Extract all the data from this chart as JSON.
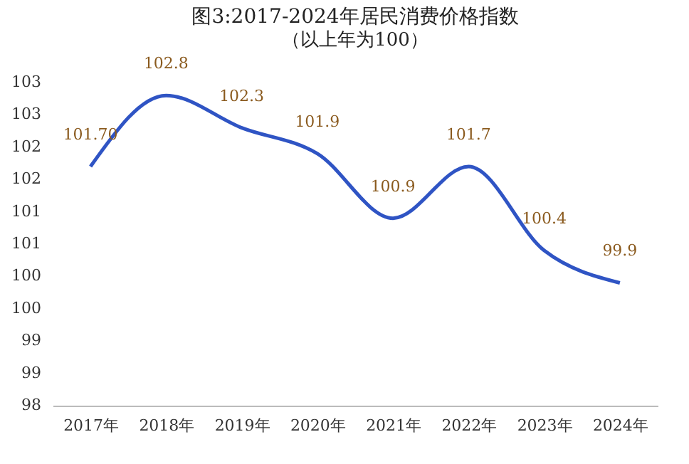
{
  "chart_data": {
    "type": "line",
    "title": "图3:2017-2024年居民消费价格指数",
    "subtitle": "（以上年为100）",
    "categories": [
      "2017年",
      "2018年",
      "2019年",
      "2020年",
      "2021年",
      "2022年",
      "2023年",
      "2024年"
    ],
    "series": [
      {
        "color": "#2f54c4",
        "values": [
          101.7,
          102.8,
          102.3,
          101.9,
          100.9,
          101.7,
          100.4,
          99.9
        ],
        "value_labels": [
          "101.70",
          "102.8",
          "102.3",
          "101.9",
          "100.9",
          "101.7",
          "100.4",
          "99.9"
        ]
      }
    ],
    "ylim": [
      98,
      103
    ],
    "yticks": [
      98,
      {
        "value": 98.5,
        "label": "99"
      },
      99,
      {
        "value": 99.5,
        "label": "100"
      },
      100,
      {
        "value": 100.5,
        "label": "101"
      },
      101,
      {
        "value": 101.5,
        "label": "102"
      },
      102,
      {
        "value": 102.5,
        "label": "103"
      },
      103
    ],
    "grid": false,
    "marker": "none",
    "line_style": "solid"
  }
}
